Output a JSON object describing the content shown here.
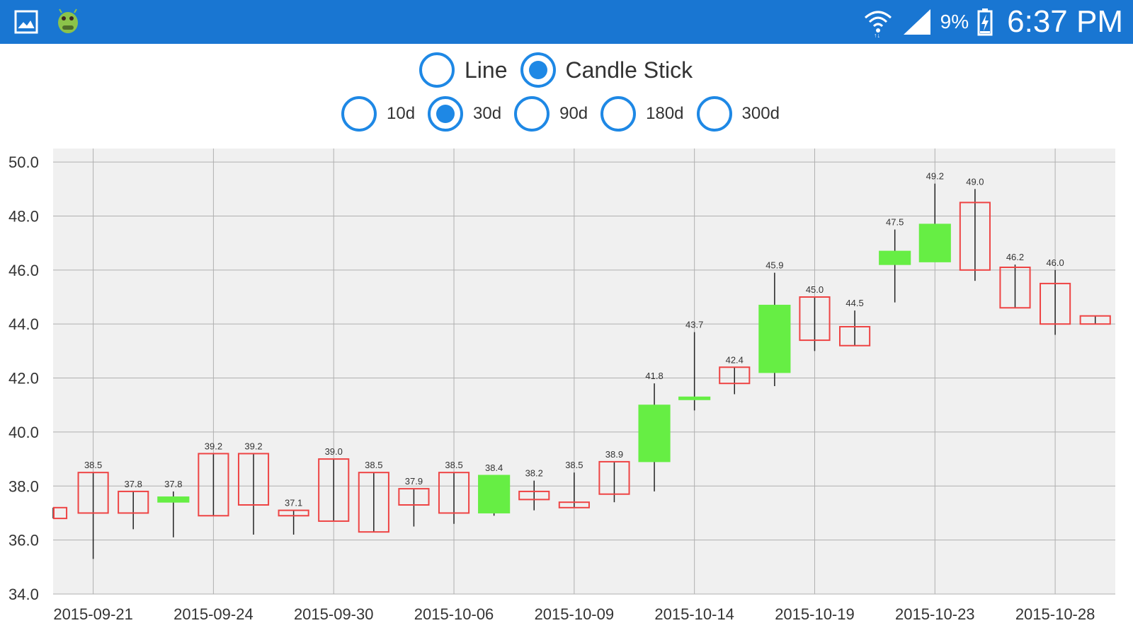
{
  "status_bar": {
    "time": "6:37 PM",
    "battery_percent": "9%",
    "icons": [
      "gallery-icon",
      "android-icon",
      "wifi-icon",
      "signal-icon",
      "battery-charging-icon"
    ],
    "background": "#1976d2"
  },
  "chart_type_options": [
    {
      "label": "Line",
      "selected": false
    },
    {
      "label": "Candle Stick",
      "selected": true
    }
  ],
  "range_options": [
    {
      "label": "10d",
      "selected": false
    },
    {
      "label": "30d",
      "selected": true
    },
    {
      "label": "90d",
      "selected": false
    },
    {
      "label": "180d",
      "selected": false
    },
    {
      "label": "300d",
      "selected": false
    }
  ],
  "chart_data": {
    "type": "candlestick",
    "ylim": [
      34,
      50.5
    ],
    "y_ticks": [
      "34.0",
      "36.0",
      "38.0",
      "40.0",
      "42.0",
      "44.0",
      "46.0",
      "48.0",
      "50.0"
    ],
    "x_tick_labels": [
      "2015-09-21",
      "2015-09-24",
      "2015-09-30",
      "2015-10-06",
      "2015-10-09",
      "2015-10-14",
      "2015-10-19",
      "2015-10-23",
      "2015-10-28"
    ],
    "grid": true,
    "colors": {
      "up": "#66ee44",
      "down": "#ee4444",
      "wick": "#000000",
      "plot_bg": "#f0f0f0",
      "grid": "#b0b0b0"
    },
    "candles": [
      {
        "open": 37.2,
        "close": 36.8,
        "high": 37.2,
        "low": 36.8,
        "label": ""
      },
      {
        "open": 38.5,
        "close": 37.0,
        "high": 38.5,
        "low": 35.3,
        "label": "38.5"
      },
      {
        "open": 37.8,
        "close": 37.0,
        "high": 37.8,
        "low": 36.4,
        "label": "37.8"
      },
      {
        "open": 37.4,
        "close": 37.6,
        "high": 37.8,
        "low": 36.1,
        "label": "37.8"
      },
      {
        "open": 39.2,
        "close": 36.9,
        "high": 39.2,
        "low": 36.9,
        "label": "39.2"
      },
      {
        "open": 39.2,
        "close": 37.3,
        "high": 39.2,
        "low": 36.2,
        "label": "39.2"
      },
      {
        "open": 37.1,
        "close": 36.9,
        "high": 37.1,
        "low": 36.2,
        "label": "37.1"
      },
      {
        "open": 39.0,
        "close": 36.7,
        "high": 39.0,
        "low": 36.7,
        "label": "39.0"
      },
      {
        "open": 38.5,
        "close": 36.3,
        "high": 38.5,
        "low": 36.3,
        "label": "38.5"
      },
      {
        "open": 37.9,
        "close": 37.3,
        "high": 37.9,
        "low": 36.5,
        "label": "37.9"
      },
      {
        "open": 38.5,
        "close": 37.0,
        "high": 38.5,
        "low": 36.6,
        "label": "38.5"
      },
      {
        "open": 37.0,
        "close": 38.4,
        "high": 38.4,
        "low": 36.9,
        "label": "38.4"
      },
      {
        "open": 37.8,
        "close": 37.5,
        "high": 38.2,
        "low": 37.1,
        "label": "38.2"
      },
      {
        "open": 37.4,
        "close": 37.2,
        "high": 38.5,
        "low": 37.2,
        "label": "38.5"
      },
      {
        "open": 38.9,
        "close": 37.7,
        "high": 38.9,
        "low": 37.4,
        "label": "38.9"
      },
      {
        "open": 38.9,
        "close": 41.0,
        "high": 41.8,
        "low": 37.8,
        "label": "41.8"
      },
      {
        "open": 41.2,
        "close": 41.3,
        "high": 43.7,
        "low": 40.8,
        "label": "43.7"
      },
      {
        "open": 42.4,
        "close": 41.8,
        "high": 42.4,
        "low": 41.4,
        "label": "42.4"
      },
      {
        "open": 42.2,
        "close": 44.7,
        "high": 45.9,
        "low": 41.7,
        "label": "45.9"
      },
      {
        "open": 45.0,
        "close": 43.4,
        "high": 45.0,
        "low": 43.0,
        "label": "45.0"
      },
      {
        "open": 43.9,
        "close": 43.2,
        "high": 44.5,
        "low": 43.2,
        "label": "44.5"
      },
      {
        "open": 46.2,
        "close": 46.7,
        "high": 47.5,
        "low": 44.8,
        "label": "47.5"
      },
      {
        "open": 46.3,
        "close": 47.7,
        "high": 49.2,
        "low": 46.3,
        "label": "49.2"
      },
      {
        "open": 48.5,
        "close": 46.0,
        "high": 49.0,
        "low": 45.6,
        "label": "49.0"
      },
      {
        "open": 46.1,
        "close": 44.6,
        "high": 46.2,
        "low": 44.6,
        "label": "46.2"
      },
      {
        "open": 45.5,
        "close": 44.0,
        "high": 46.0,
        "low": 43.6,
        "label": "46.0"
      },
      {
        "open": 44.3,
        "close": 44.0,
        "high": 44.3,
        "low": 44.0,
        "label": ""
      }
    ]
  }
}
